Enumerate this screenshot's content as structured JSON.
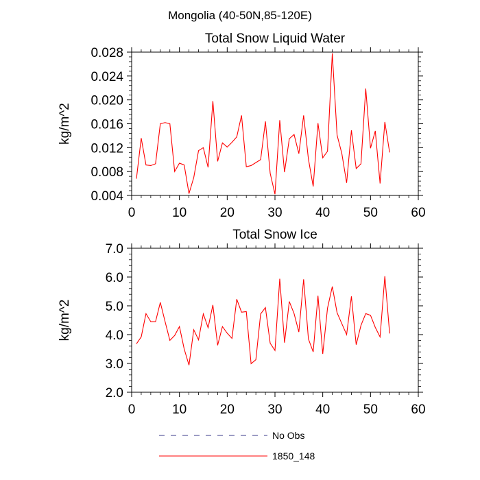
{
  "figure": {
    "suptitle": "Mongolia (40-50N,85-120E)"
  },
  "legend": {
    "entries": [
      {
        "label": "No Obs",
        "style": "dashed",
        "color": "#3a3a8a"
      },
      {
        "label": "1850_148",
        "style": "solid",
        "color": "#ff0000"
      }
    ]
  },
  "chart_data": [
    {
      "type": "line",
      "title": "Total Snow Liquid Water",
      "xlabel": "",
      "ylabel": "kg/m^2",
      "xlim": [
        0,
        60
      ],
      "ylim": [
        0.004,
        0.028
      ],
      "xticks": [
        "0",
        "10",
        "20",
        "30",
        "40",
        "50",
        "60"
      ],
      "yticks": [
        "0.004",
        "0.008",
        "0.012",
        "0.016",
        "0.020",
        "0.024",
        "0.028"
      ],
      "grid": false,
      "series": [
        {
          "name": "1850_148",
          "color": "#ff0000",
          "x": [
            1,
            2,
            3,
            4,
            5,
            6,
            7,
            8,
            9,
            10,
            11,
            12,
            13,
            14,
            15,
            16,
            17,
            18,
            19,
            20,
            21,
            22,
            23,
            24,
            25,
            26,
            27,
            28,
            29,
            30,
            31,
            32,
            33,
            34,
            35,
            36,
            37,
            38,
            39,
            40,
            41,
            42,
            43,
            44,
            45,
            46,
            47,
            48,
            49,
            50,
            51,
            52,
            53,
            54
          ],
          "y": [
            0.0068,
            0.0136,
            0.0091,
            0.009,
            0.0093,
            0.016,
            0.0162,
            0.016,
            0.008,
            0.0094,
            0.0091,
            0.0043,
            0.007,
            0.0115,
            0.012,
            0.0087,
            0.0198,
            0.0097,
            0.0128,
            0.0121,
            0.0129,
            0.0138,
            0.0174,
            0.0088,
            0.009,
            0.0095,
            0.01,
            0.0164,
            0.0077,
            0.0042,
            0.0166,
            0.0079,
            0.0135,
            0.0142,
            0.011,
            0.0174,
            0.0101,
            0.0055,
            0.0161,
            0.0103,
            0.0114,
            0.0278,
            0.0141,
            0.011,
            0.0061,
            0.0149,
            0.0085,
            0.0093,
            0.0219,
            0.0119,
            0.0148,
            0.006,
            0.0163,
            0.0112
          ]
        }
      ]
    },
    {
      "type": "line",
      "title": "Total Snow Ice",
      "xlabel": "",
      "ylabel": "kg/m^2",
      "xlim": [
        0,
        60
      ],
      "ylim": [
        2.0,
        7.0
      ],
      "xticks": [
        "0",
        "10",
        "20",
        "30",
        "40",
        "50",
        "60"
      ],
      "yticks": [
        "2.0",
        "3.0",
        "4.0",
        "5.0",
        "6.0",
        "7.0"
      ],
      "grid": false,
      "series": [
        {
          "name": "1850_148",
          "color": "#ff0000",
          "x": [
            1,
            2,
            3,
            4,
            5,
            6,
            7,
            8,
            9,
            10,
            11,
            12,
            13,
            14,
            15,
            16,
            17,
            18,
            19,
            20,
            21,
            22,
            23,
            24,
            25,
            26,
            27,
            28,
            29,
            30,
            31,
            32,
            33,
            34,
            35,
            36,
            37,
            38,
            39,
            40,
            41,
            42,
            43,
            44,
            45,
            46,
            47,
            48,
            49,
            50,
            51,
            52,
            53,
            54
          ],
          "y": [
            3.68,
            3.92,
            4.73,
            4.45,
            4.45,
            5.12,
            4.45,
            3.8,
            3.97,
            4.28,
            3.5,
            2.94,
            4.17,
            3.82,
            4.72,
            4.24,
            5.03,
            3.63,
            4.28,
            4.05,
            3.87,
            5.23,
            4.78,
            4.8,
            2.99,
            3.13,
            4.72,
            4.94,
            3.7,
            3.45,
            5.94,
            3.72,
            5.15,
            4.73,
            4.09,
            5.92,
            3.85,
            3.4,
            5.35,
            3.33,
            4.92,
            5.67,
            4.76,
            4.38,
            4.0,
            5.33,
            3.65,
            4.32,
            4.73,
            4.67,
            4.25,
            3.92,
            6.03,
            4.04
          ]
        }
      ]
    }
  ]
}
